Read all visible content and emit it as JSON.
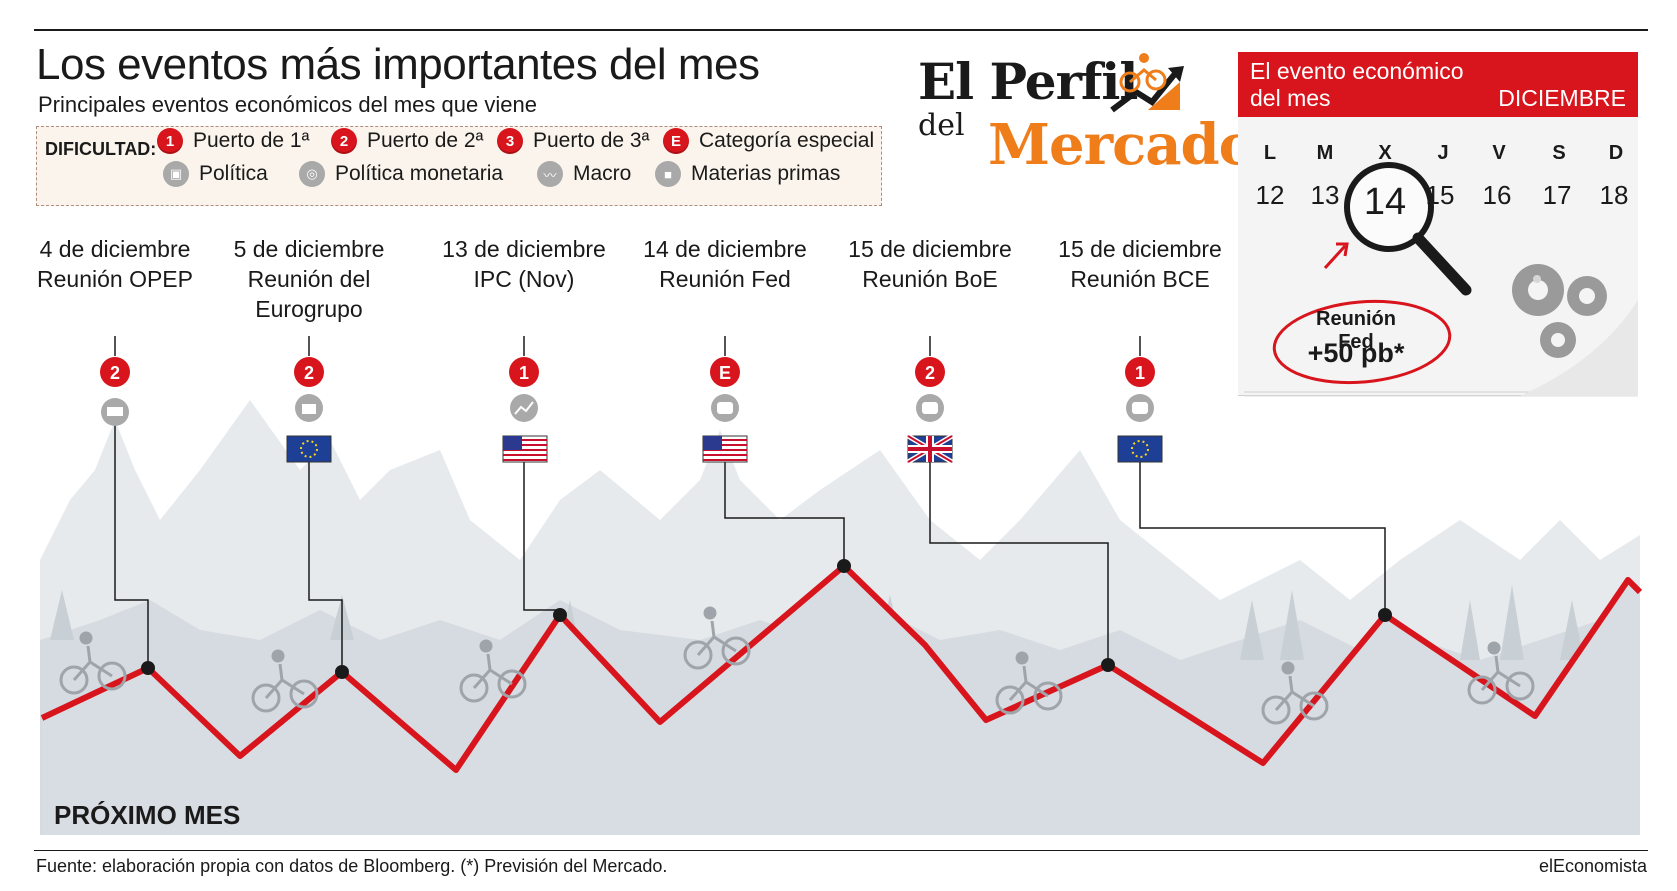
{
  "title": "Los eventos más importantes del mes",
  "subtitle": "Principales eventos económicos del mes que viene",
  "legend": {
    "heading": "DIFICULTAD:",
    "difficulty": [
      {
        "badge": "1",
        "label": "Puerto de 1ª"
      },
      {
        "badge": "2",
        "label": "Puerto de 2ª"
      },
      {
        "badge": "3",
        "label": "Puerto de 3ª"
      },
      {
        "badge": "E",
        "label": "Categoría especial"
      }
    ],
    "categories": [
      {
        "icon": "ballot-box-icon",
        "label": "Política"
      },
      {
        "icon": "coin-stack-icon",
        "label": "Política monetaria"
      },
      {
        "icon": "trend-line-icon",
        "label": "Macro"
      },
      {
        "icon": "truck-icon",
        "label": "Materias primas"
      }
    ]
  },
  "logo": {
    "line1": "El Perfil",
    "line2": "del",
    "line3": "Mercado"
  },
  "calendar": {
    "header_line1": "El evento económico",
    "header_line2": "del mes",
    "month": "DICIEMBRE",
    "weekdays": [
      "L",
      "M",
      "X",
      "J",
      "V",
      "S",
      "D"
    ],
    "days": [
      "12",
      "13",
      "14",
      "15",
      "16",
      "17",
      "18"
    ],
    "highlight_day": "14",
    "highlight_event": "Reunión Fed",
    "highlight_value": "+50 pb*"
  },
  "events": [
    {
      "date": "4 de diciembre",
      "name": "Reunión OPEP",
      "badge": "2",
      "category": "truck-icon",
      "flag": "none"
    },
    {
      "date": "5 de diciembre",
      "name": "Reunión del Eurogrupo",
      "badge": "2",
      "category": "ballot-box-icon",
      "flag": "eu"
    },
    {
      "date": "13 de diciembre",
      "name": "IPC (Nov)",
      "badge": "1",
      "category": "trend-line-icon",
      "flag": "us"
    },
    {
      "date": "14 de diciembre",
      "name": "Reunión Fed",
      "badge": "E",
      "category": "coin-stack-icon",
      "flag": "us"
    },
    {
      "date": "15 de diciembre",
      "name": "Reunión BoE",
      "badge": "2",
      "category": "coin-stack-icon",
      "flag": "uk"
    },
    {
      "date": "15 de diciembre",
      "name": "Reunión BCE",
      "badge": "1",
      "category": "coin-stack-icon",
      "flag": "eu"
    }
  ],
  "footer": {
    "section": "PRÓXIMO MES",
    "source": "Fuente: elaboración propia con datos de Bloomberg. (*) Previsión del Mercado.",
    "brand": "elEconomista"
  },
  "colors": {
    "accent_red": "#d8141c",
    "brand_orange": "#ee7d1a",
    "mountain_grey": "#cfd6dc",
    "icon_grey": "#a9a9a9"
  }
}
